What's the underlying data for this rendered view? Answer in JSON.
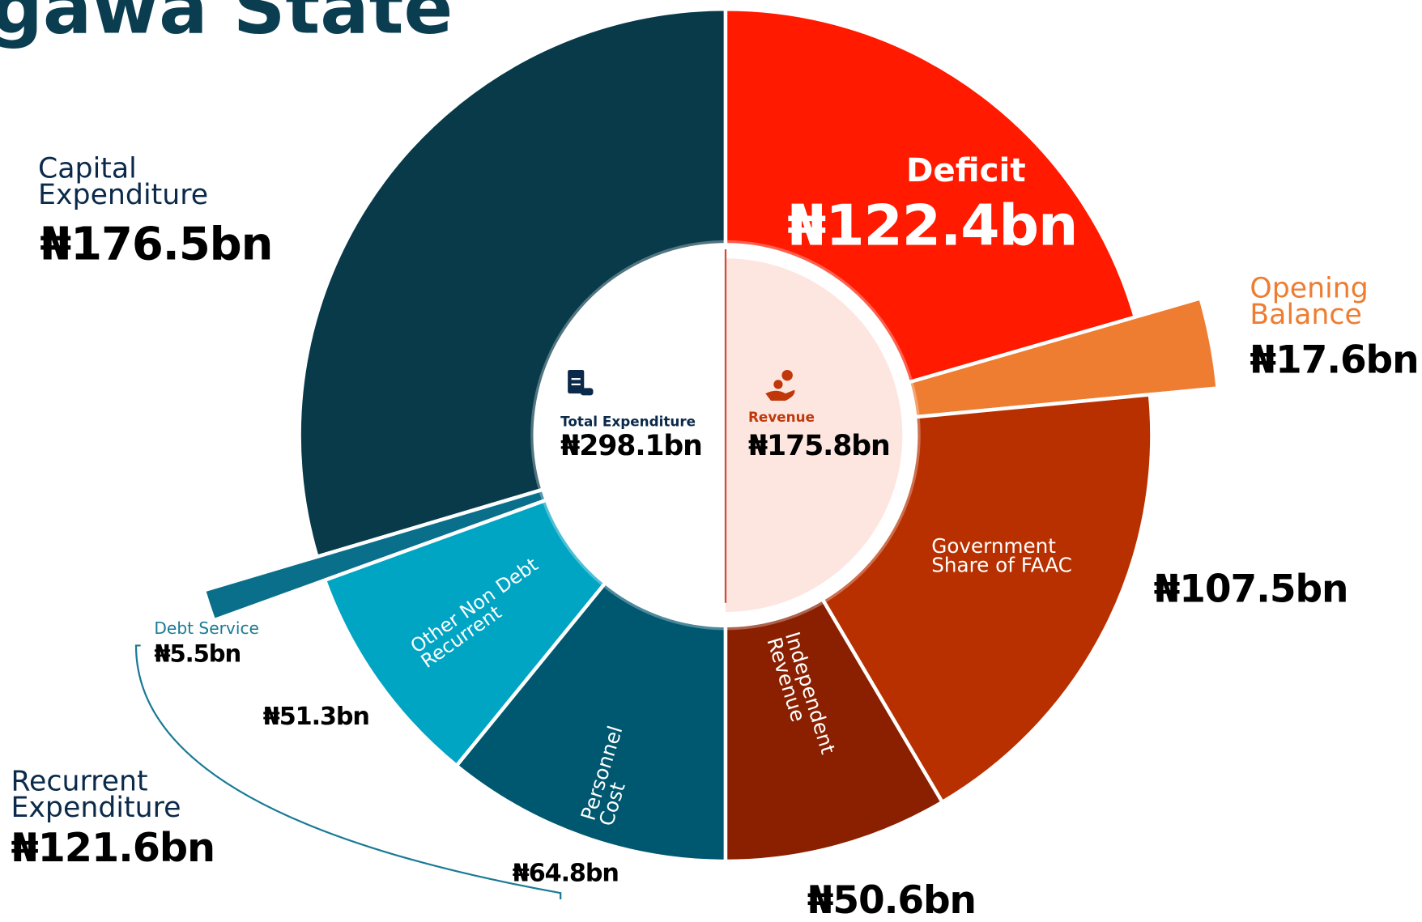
{
  "chart_data": {
    "type": "split-donut",
    "title": "gawa State",
    "groups": [
      {
        "name": "Total Expenditure",
        "total": 298.1,
        "total_label": "₦298.1bn",
        "segments": [
          {
            "name": "Capital Expenditure",
            "value": 176.5,
            "value_label": "₦176.5bn",
            "color": "#083a4a"
          },
          {
            "name": "Debt Service",
            "value": 5.5,
            "value_label": "₦5.5bn",
            "color": "#0a6f8a"
          },
          {
            "name": "Other Non Debt Recurrent",
            "value": 51.3,
            "value_label": "₦51.3bn",
            "color": "#00a5c4"
          },
          {
            "name": "Personnel Cost",
            "value": 64.8,
            "value_label": "₦64.8bn",
            "color": "#005770"
          }
        ]
      },
      {
        "name": "Revenue",
        "total": 175.8,
        "total_label": "₦175.8bn",
        "segments": [
          {
            "name": "Deficit",
            "value": 122.4,
            "value_label": "₦122.4bn",
            "color": "#ff1a00"
          },
          {
            "name": "Opening Balance",
            "value": 17.6,
            "value_label": "₦17.6bn",
            "color": "#ee7d32"
          },
          {
            "name": "Government Share of FAAC",
            "value": 107.5,
            "value_label": "₦107.5bn",
            "color": "#b83000"
          },
          {
            "name": "Independent Revenue",
            "value": 50.6,
            "value_label": "₦50.6bn",
            "color": "#8a2000"
          }
        ]
      }
    ],
    "brackets": [
      {
        "name": "Recurrent Expenditure",
        "value": 121.6,
        "value_label": "₦121.6bn"
      }
    ]
  }
}
